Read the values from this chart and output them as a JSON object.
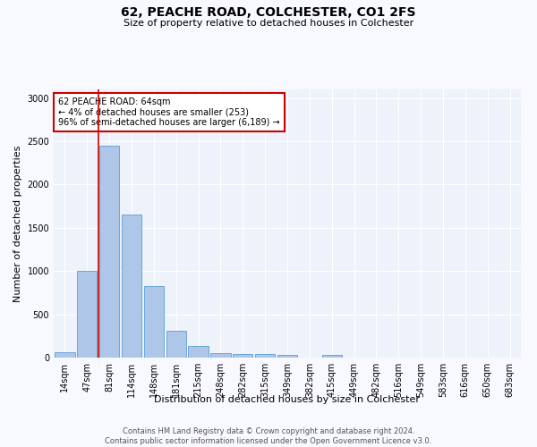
{
  "title": "62, PEACHE ROAD, COLCHESTER, CO1 2FS",
  "subtitle": "Size of property relative to detached houses in Colchester",
  "xlabel": "Distribution of detached houses by size in Colchester",
  "ylabel": "Number of detached properties",
  "categories": [
    "14sqm",
    "47sqm",
    "81sqm",
    "114sqm",
    "148sqm",
    "181sqm",
    "215sqm",
    "248sqm",
    "282sqm",
    "315sqm",
    "349sqm",
    "382sqm",
    "415sqm",
    "449sqm",
    "482sqm",
    "516sqm",
    "549sqm",
    "583sqm",
    "616sqm",
    "650sqm",
    "683sqm"
  ],
  "values": [
    60,
    1000,
    2450,
    1650,
    830,
    310,
    130,
    55,
    45,
    45,
    30,
    0,
    35,
    0,
    0,
    0,
    0,
    0,
    0,
    0,
    0
  ],
  "bar_color": "#aec6e8",
  "bar_edge_color": "#5a9fd4",
  "background_color": "#eef2fa",
  "fig_background": "#f8f8ff",
  "vline_color": "#cc0000",
  "vline_x_index": 1.5,
  "annotation_text": "62 PEACHE ROAD: 64sqm\n← 4% of detached houses are smaller (253)\n96% of semi-detached houses are larger (6,189) →",
  "annotation_box_color": "#cc0000",
  "ylim": [
    0,
    3100
  ],
  "yticks": [
    0,
    500,
    1000,
    1500,
    2000,
    2500,
    3000
  ],
  "title_fontsize": 10,
  "subtitle_fontsize": 8,
  "ylabel_fontsize": 8,
  "xlabel_fontsize": 8,
  "tick_fontsize": 7,
  "annotation_fontsize": 7,
  "footer_fontsize": 6,
  "footer_line1": "Contains HM Land Registry data © Crown copyright and database right 2024.",
  "footer_line2": "Contains public sector information licensed under the Open Government Licence v3.0."
}
